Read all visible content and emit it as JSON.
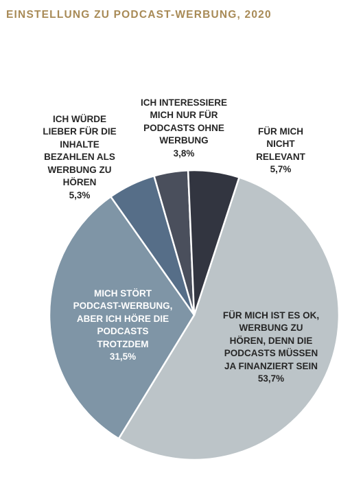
{
  "title": "EINSTELLUNG ZU PODCAST-WERBUNG, 2020",
  "chart_data": {
    "type": "pie",
    "title": "EINSTELLUNG ZU PODCAST-WERBUNG, 2020",
    "slices": [
      {
        "label": "FÜR MICH IST ES OK, WERBUNG ZU HÖREN, DENN DIE PODCASTS MÜSSEN JA FINANZIERT SEIN",
        "value": 53.7,
        "display": "53,7%",
        "color": "#bcc4c8"
      },
      {
        "label": "MICH STÖRT PODCAST-WERBUNG, ABER ICH HÖRE DIE PODCASTS TROTZDEM",
        "value": 31.5,
        "display": "31,5%",
        "color": "#7f95a6"
      },
      {
        "label": "ICH WÜRDE LIEBER FÜR DIE INHALTE BEZAHLEN ALS WERBUNG ZU HÖREN",
        "value": 5.3,
        "display": "5,3%",
        "color": "#566e88"
      },
      {
        "label": "ICH INTERESSIERE MICH NUR FÜR PODCASTS OHNE WERBUNG",
        "value": 3.8,
        "display": "3,8%",
        "color": "#4a4f5c"
      },
      {
        "label": "FÜR MICH NICHT RELEVANT",
        "value": 5.7,
        "display": "5,7%",
        "color": "#323540"
      }
    ]
  }
}
